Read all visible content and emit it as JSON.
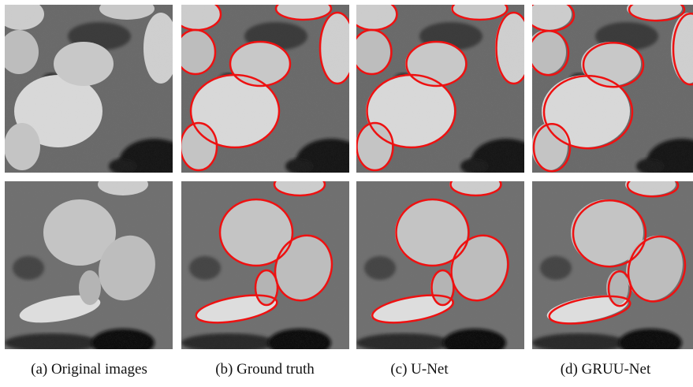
{
  "captions": [
    "(a) Original images",
    "(b) Ground truth",
    "(c) U-Net",
    "(d) GRUU-Net"
  ]
}
